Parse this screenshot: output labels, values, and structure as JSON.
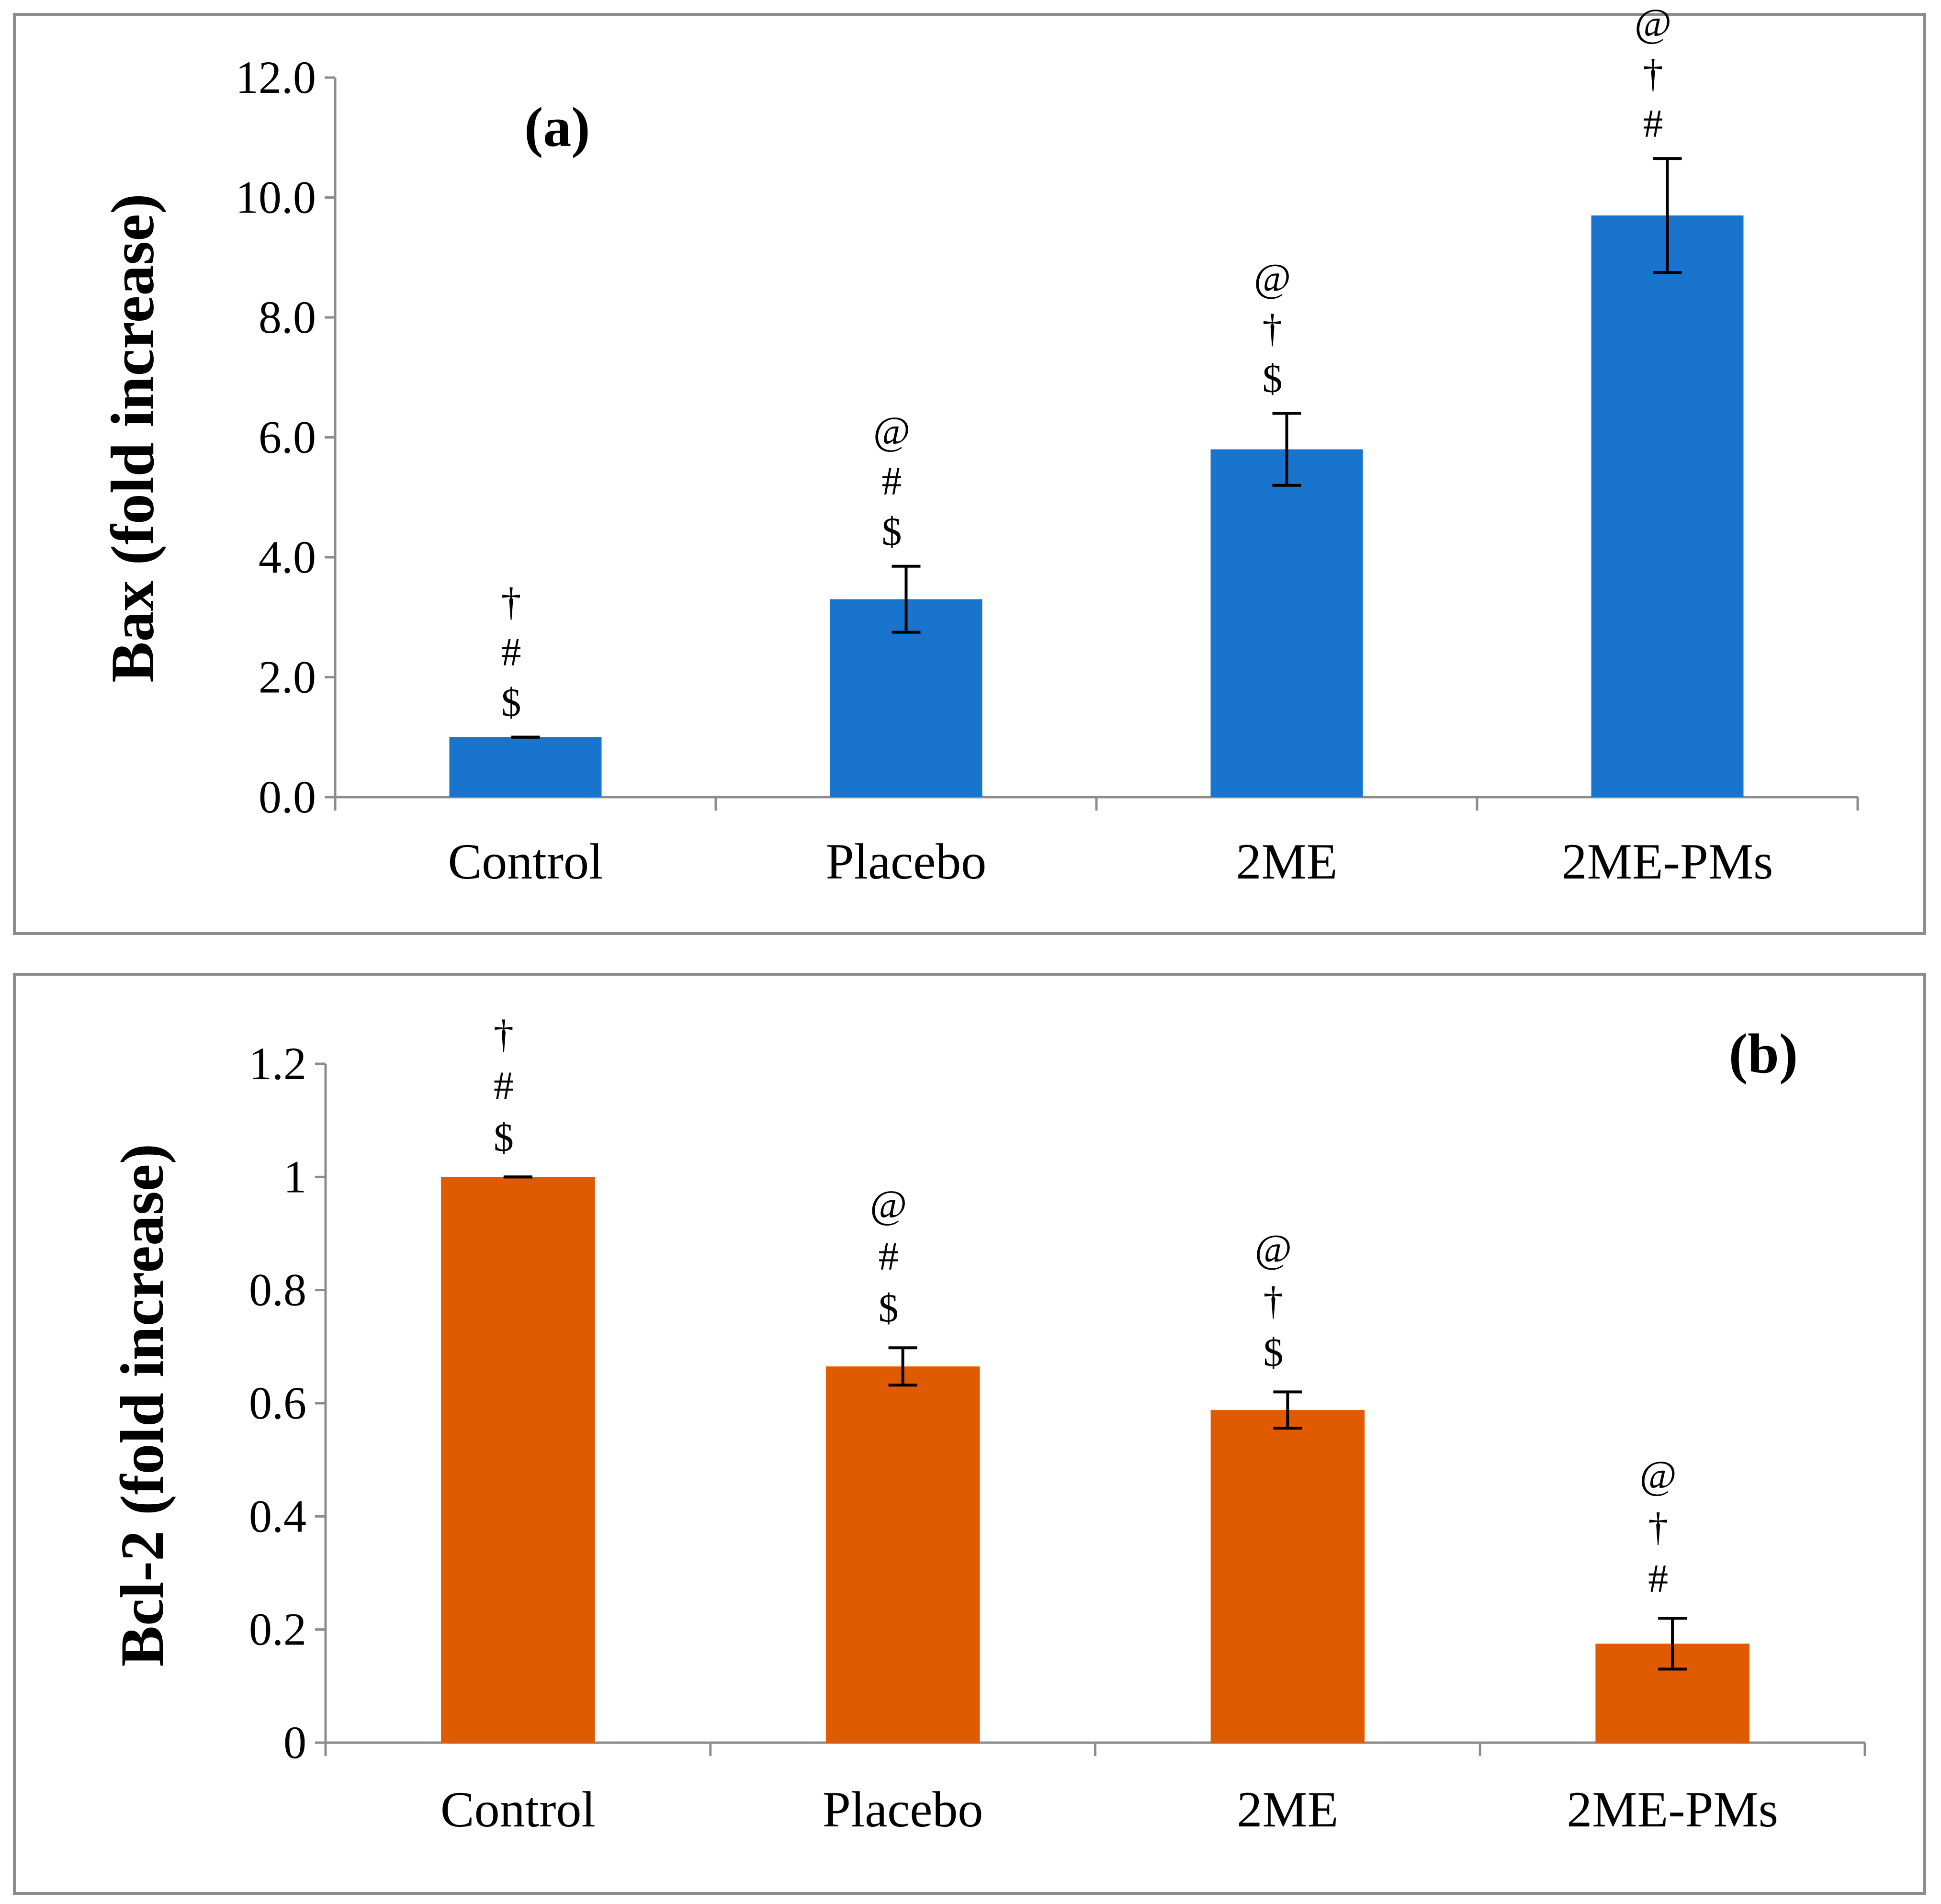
{
  "chart_data": [
    {
      "type": "bar",
      "panel_label": "(a)",
      "ylabel": "Bax (fold increase)",
      "xlabel": "",
      "categories": [
        "Control",
        "Placebo",
        "2ME",
        "2ME-PMs"
      ],
      "values": [
        1.0,
        3.3,
        5.8,
        9.7
      ],
      "errors": [
        0.0,
        0.55,
        0.6,
        0.95
      ],
      "significance": [
        [
          "†",
          "#",
          "$"
        ],
        [
          "@",
          "#",
          "$"
        ],
        [
          "@",
          "†",
          "$"
        ],
        [
          "@",
          "†",
          "#"
        ]
      ],
      "ylim": [
        0,
        12
      ],
      "yticks": [
        0,
        2,
        4,
        6,
        8,
        10,
        12
      ],
      "ytick_labels": [
        "0.0",
        "2.0",
        "4.0",
        "6.0",
        "8.0",
        "10.0",
        "12.0"
      ],
      "color": "#1874cd",
      "grid": false
    },
    {
      "type": "bar",
      "panel_label": "(b)",
      "ylabel": "Bcl-2 (fold increase)",
      "xlabel": "",
      "categories": [
        "Control",
        "Placebo",
        "2ME",
        "2ME-PMs"
      ],
      "values": [
        1.0,
        0.665,
        0.588,
        0.175
      ],
      "errors": [
        0.0,
        0.033,
        0.032,
        0.045
      ],
      "significance": [
        [
          "†",
          "#",
          "$"
        ],
        [
          "@",
          "#",
          "$"
        ],
        [
          "@",
          "†",
          "$"
        ],
        [
          "@",
          "†",
          "#"
        ]
      ],
      "ylim": [
        0,
        1.2
      ],
      "yticks": [
        0,
        0.2,
        0.4,
        0.6,
        0.8,
        1,
        1.2
      ],
      "ytick_labels": [
        "0",
        "0.2",
        "0.4",
        "0.6",
        "0.8",
        "1",
        "1.2"
      ],
      "color": "#e05a00",
      "grid": false
    }
  ]
}
